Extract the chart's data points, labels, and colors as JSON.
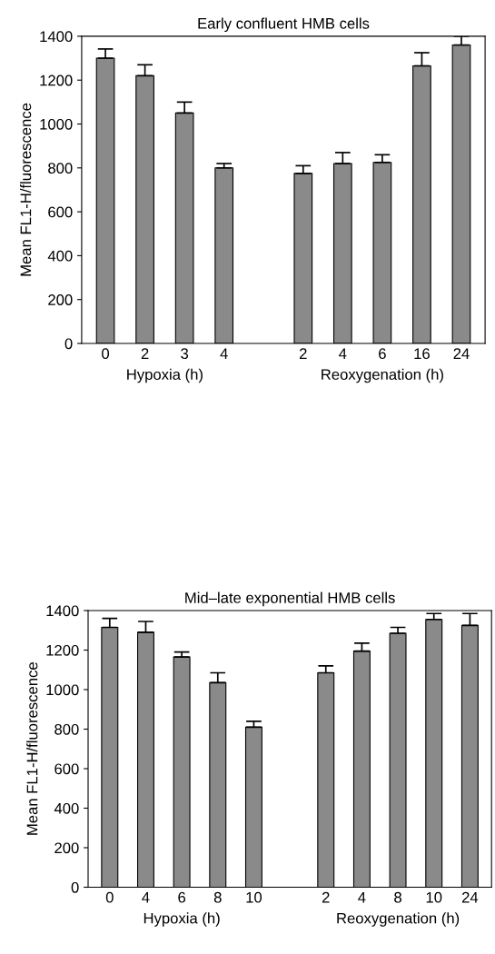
{
  "chart_data": [
    {
      "type": "bar",
      "title": "Early confluent HMB cells",
      "ylabel": "Mean FL1-H/fluorescence",
      "categories": [
        "0",
        "2",
        "3",
        "4",
        null,
        "2",
        "4",
        "6",
        "16",
        "24"
      ],
      "values": [
        1300,
        1220,
        1050,
        800,
        null,
        775,
        820,
        825,
        1265,
        1360
      ],
      "errors": [
        [
          1300,
          1342
        ],
        [
          1220,
          1270
        ],
        [
          1050,
          1100
        ],
        [
          800,
          820
        ],
        null,
        [
          775,
          810
        ],
        [
          820,
          870
        ],
        [
          825,
          860
        ],
        [
          1265,
          1325
        ],
        [
          1360,
          1400
        ]
      ],
      "color": "#8a8a8a",
      "ylim": [
        0,
        1400
      ],
      "yticks": [
        0,
        200,
        400,
        600,
        800,
        1000,
        1200,
        1400
      ],
      "grid": false,
      "legend": false,
      "annotations": [
        "Hypoxia (h)",
        "Reoxygenation (h)"
      ]
    },
    {
      "type": "bar",
      "title": "Mid–late exponential HMB cells",
      "ylabel": "Mean FL1-H/fluorescence",
      "categories": [
        "0",
        "4",
        "6",
        "8",
        "10",
        null,
        "2",
        "4",
        "8",
        "10",
        "24"
      ],
      "values": [
        1315,
        1290,
        1165,
        1035,
        810,
        null,
        1085,
        1195,
        1285,
        1355,
        1325
      ],
      "errors": [
        [
          1315,
          1360
        ],
        [
          1290,
          1345
        ],
        [
          1165,
          1190
        ],
        [
          1035,
          1085
        ],
        [
          810,
          840
        ],
        null,
        [
          1085,
          1120
        ],
        [
          1195,
          1235
        ],
        [
          1285,
          1315
        ],
        [
          1355,
          1385
        ],
        [
          1325,
          1385
        ]
      ],
      "color": "#8a8a8a",
      "ylim": [
        0,
        1400
      ],
      "yticks": [
        0,
        200,
        400,
        600,
        800,
        1000,
        1200,
        1400
      ],
      "grid": false,
      "legend": false,
      "annotations": [
        "Hypoxia (h)",
        "Reoxygenation (h)"
      ]
    }
  ]
}
